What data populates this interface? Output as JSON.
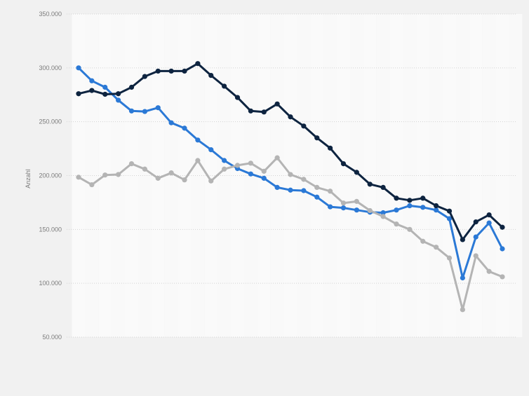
{
  "chart_data": {
    "type": "line",
    "title": "",
    "xlabel": "",
    "ylabel": "Anzahl",
    "ylim": [
      50000,
      350000
    ],
    "yticks": [
      50000,
      100000,
      150000,
      200000,
      250000,
      300000,
      350000
    ],
    "ytick_labels": [
      "50.000",
      "100.000",
      "150.000",
      "200.000",
      "250.000",
      "300.000",
      "350.000"
    ],
    "grid": true,
    "legend": "none",
    "x": [
      1,
      2,
      3,
      4,
      5,
      6,
      7,
      8,
      9,
      10,
      11,
      12,
      13,
      14,
      15,
      16,
      17,
      18,
      19,
      20,
      21,
      22,
      23,
      24,
      25,
      26,
      27,
      28,
      29,
      30,
      31,
      32,
      33
    ],
    "series": [
      {
        "color": "#2b79d6",
        "values": [
          300000,
          288000,
          282000,
          270000,
          260000,
          259500,
          263000,
          249000,
          244000,
          233000,
          224000,
          214000,
          206500,
          201500,
          197500,
          189000,
          186500,
          186000,
          180000,
          171000,
          170000,
          168000,
          166000,
          165500,
          168000,
          172000,
          170500,
          168000,
          160000,
          105000,
          143000,
          156000,
          132000
        ]
      },
      {
        "color": "#0e2440",
        "values": [
          276000,
          279000,
          275500,
          276000,
          282000,
          292000,
          297000,
          297000,
          297000,
          304000,
          293000,
          283000,
          272500,
          260000,
          259000,
          266500,
          254500,
          246000,
          235000,
          225500,
          211000,
          203000,
          192000,
          189000,
          179000,
          177000,
          179000,
          172000,
          167000,
          140500,
          157000,
          163500,
          152000
        ]
      },
      {
        "color": "#b4b4b4",
        "values": [
          198500,
          191500,
          200500,
          201000,
          211000,
          206000,
          197500,
          202500,
          196000,
          214000,
          195000,
          206000,
          209500,
          211500,
          204000,
          216500,
          201000,
          196500,
          189000,
          185500,
          174500,
          176000,
          167500,
          162000,
          155000,
          150000,
          139000,
          133500,
          123500,
          75500,
          125500,
          111000,
          106000
        ]
      }
    ]
  }
}
